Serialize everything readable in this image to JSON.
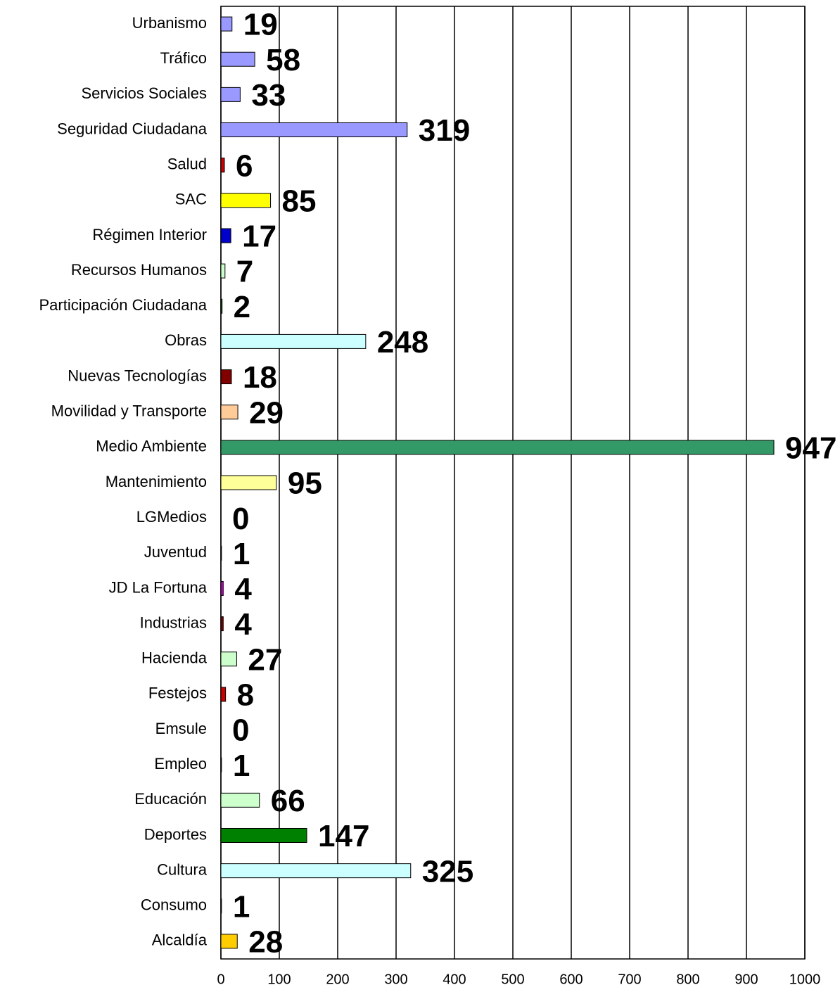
{
  "chart_data": {
    "type": "hbar",
    "categories": [
      "Urbanismo",
      "Tráfico",
      "Servicios Sociales",
      "Seguridad Ciudadana",
      "Salud",
      "SAC",
      "Régimen Interior",
      "Recursos Humanos",
      "Participación Ciudadana",
      "Obras",
      "Nuevas Tecnologías",
      "Movilidad y Transporte",
      "Medio Ambiente",
      "Mantenimiento",
      "LGMedios",
      "Juventud",
      "JD La Fortuna",
      "Industrias",
      "Hacienda",
      "Festejos",
      "Emsule",
      "Empleo",
      "Educación",
      "Deportes",
      "Cultura",
      "Consumo",
      "Alcaldía"
    ],
    "values": [
      19,
      58,
      33,
      319,
      6,
      85,
      17,
      7,
      2,
      248,
      18,
      29,
      947,
      95,
      0,
      1,
      4,
      4,
      27,
      8,
      0,
      1,
      66,
      147,
      325,
      1,
      28
    ],
    "colors": [
      "#9999ff",
      "#9999ff",
      "#9999ff",
      "#9999ff",
      "#cc0000",
      "#ffff00",
      "#0000cc",
      "#ccffcc",
      "#006600",
      "#ccffff",
      "#800000",
      "#ffcc99",
      "#339966",
      "#ffff99",
      "#999999",
      "#33cccc",
      "#cc00cc",
      "#800000",
      "#ccffcc",
      "#cc0000",
      "#999999",
      "#000080",
      "#ccffcc",
      "#008000",
      "#ccffff",
      "#800000",
      "#ffcc00"
    ],
    "xlim": [
      0,
      1000
    ],
    "xticks": [
      0,
      100,
      200,
      300,
      400,
      500,
      600,
      700,
      800,
      900,
      1000
    ],
    "grid": true
  }
}
